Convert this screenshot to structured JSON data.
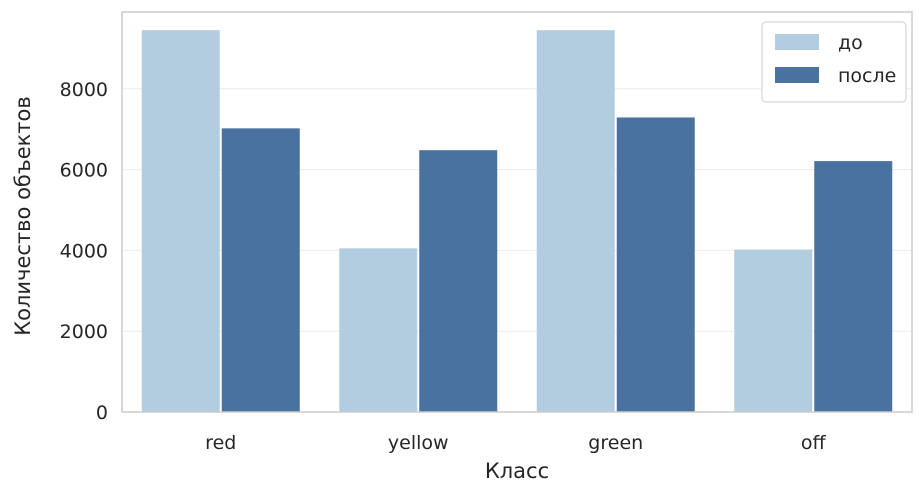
{
  "chart_data": {
    "type": "bar",
    "title": "",
    "xlabel": "Класс",
    "ylabel": "Количество объектов",
    "categories": [
      "red",
      "yellow",
      "green",
      "off"
    ],
    "series": [
      {
        "name": "до",
        "color": "#b3cde0",
        "values": [
          9450,
          4050,
          9450,
          4020
        ]
      },
      {
        "name": "после",
        "color": "#4a72a0",
        "values": [
          7020,
          6480,
          7290,
          6210
        ]
      }
    ],
    "ylim": [
      0,
      9900
    ],
    "yticks": [
      0,
      2000,
      4000,
      6000,
      8000
    ],
    "grid": true,
    "legend": "top-right"
  }
}
